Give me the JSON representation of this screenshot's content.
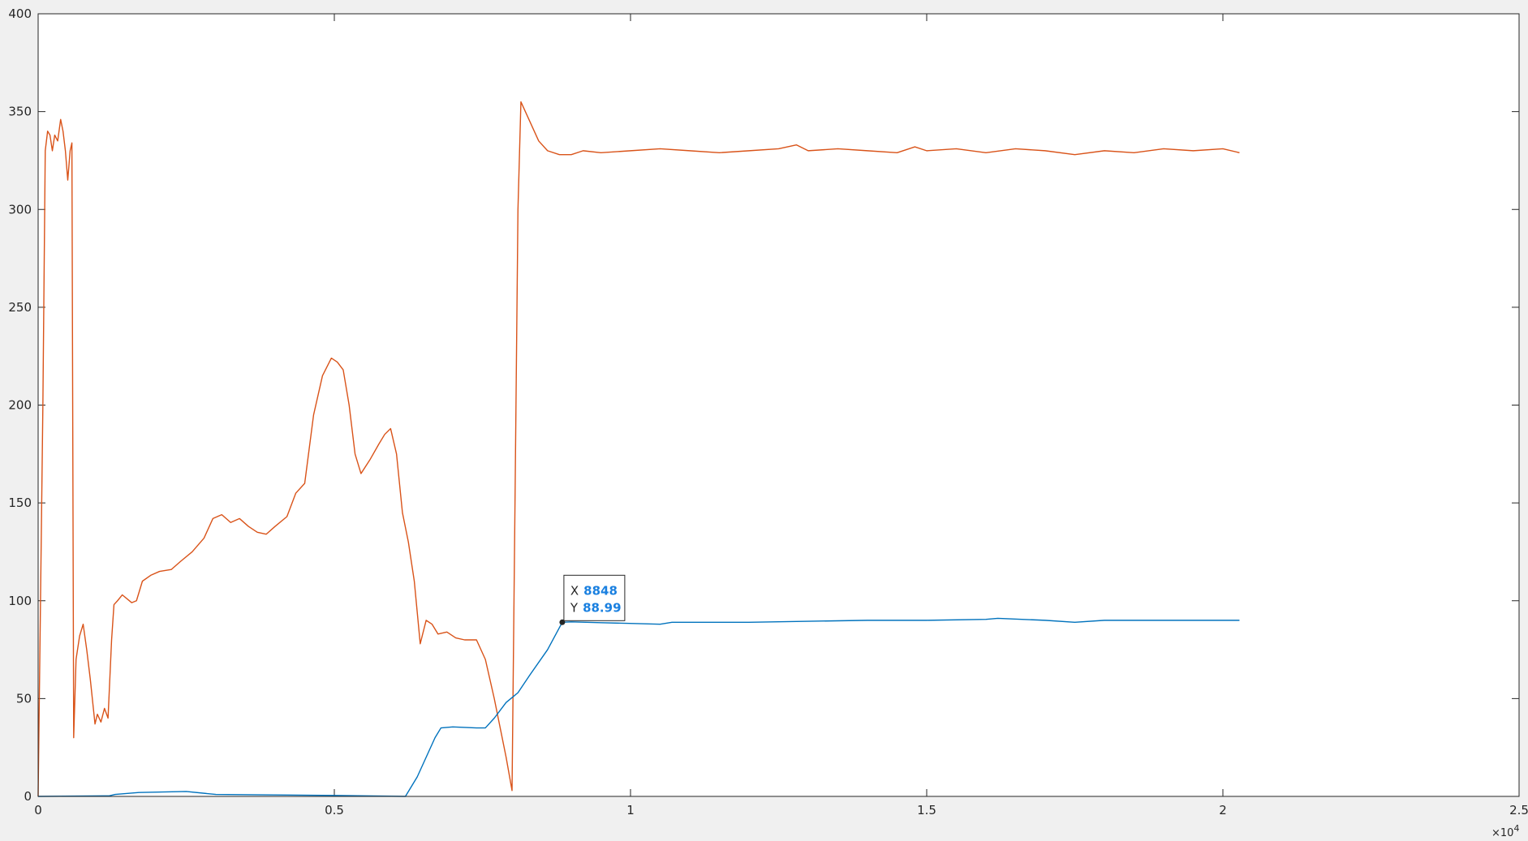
{
  "chart_data": {
    "type": "line",
    "xlim": [
      0,
      25000
    ],
    "ylim": [
      0,
      400
    ],
    "xticks": [
      0,
      {
        "value": 5000,
        "label": "0.5"
      },
      {
        "value": 10000,
        "label": "1"
      },
      {
        "value": 15000,
        "label": "1.5"
      },
      {
        "value": 20000,
        "label": "2"
      },
      {
        "value": 25000,
        "label": "2.5"
      }
    ],
    "yticks": [
      0,
      50,
      100,
      150,
      200,
      250,
      300,
      350,
      400
    ],
    "x_exponent": {
      "base": "×10",
      "power": "4"
    },
    "series": [
      {
        "color": "#D95319",
        "x": [
          0,
          80,
          120,
          160,
          200,
          240,
          280,
          330,
          380,
          420,
          460,
          500,
          540,
          570,
          600,
          640,
          700,
          760,
          820,
          880,
          960,
          1000,
          1060,
          1120,
          1180,
          1240,
          1280,
          1340,
          1420,
          1500,
          1580,
          1660,
          1760,
          1900,
          2050,
          2250,
          2400,
          2600,
          2800,
          2950,
          3100,
          3250,
          3400,
          3550,
          3700,
          3850,
          4000,
          4200,
          4350,
          4500,
          4650,
          4800,
          4950,
          5050,
          5150,
          5250,
          5350,
          5450,
          5600,
          5750,
          5850,
          5950,
          6050,
          6150,
          6250,
          6350,
          6450,
          6550,
          6650,
          6750,
          6900,
          7050,
          7200,
          7400,
          7550,
          7700,
          7900,
          8000,
          8050,
          8100,
          8150,
          8300,
          8450,
          8600,
          8800,
          9000,
          9200,
          9500,
          10000,
          10500,
          11000,
          11500,
          12000,
          12500,
          12800,
          13000,
          13500,
          14000,
          14500,
          14800,
          15000,
          15500,
          16000,
          16500,
          17000,
          17500,
          18000,
          18500,
          19000,
          19500,
          20000,
          20280
        ],
        "values": [
          0,
          200,
          330,
          340,
          338,
          330,
          338,
          335,
          346,
          340,
          330,
          315,
          330,
          334,
          30,
          70,
          82,
          88,
          75,
          60,
          37,
          42,
          38,
          45,
          40,
          80,
          98,
          100,
          103,
          101,
          99,
          100,
          110,
          113,
          115,
          116,
          120,
          125,
          132,
          142,
          144,
          140,
          142,
          138,
          135,
          134,
          138,
          143,
          155,
          160,
          195,
          215,
          224,
          222,
          218,
          200,
          175,
          165,
          172,
          180,
          185,
          188,
          175,
          145,
          130,
          110,
          78,
          90,
          88,
          83,
          84,
          81,
          80,
          80,
          70,
          50,
          20,
          3,
          150,
          300,
          355,
          345,
          335,
          330,
          328,
          328,
          330,
          329,
          330,
          331,
          330,
          329,
          330,
          331,
          333,
          330,
          331,
          330,
          329,
          332,
          330,
          331,
          329,
          331,
          330,
          328,
          330,
          329,
          331,
          330,
          331,
          329
        ]
      },
      {
        "color": "#0072BD",
        "x": [
          0,
          1200,
          1300,
          1700,
          2500,
          3000,
          5000,
          6200,
          6400,
          6700,
          6800,
          7000,
          7400,
          7550,
          7700,
          7900,
          8100,
          8300,
          8600,
          8848,
          9000,
          9500,
          10500,
          10700,
          12000,
          13000,
          14000,
          15000,
          16000,
          16200,
          17000,
          17500,
          18000,
          19000,
          20280
        ],
        "values": [
          0,
          0.3,
          1,
          2,
          2.5,
          1,
          0.5,
          0,
          10,
          30,
          35,
          35.5,
          35,
          35,
          40,
          48,
          53,
          62,
          75,
          88.99,
          89.2,
          88.8,
          88,
          89,
          89,
          89.5,
          90,
          90,
          90.5,
          91,
          90,
          89,
          90,
          90,
          90
        ]
      }
    ],
    "datatip": {
      "x_label": "X",
      "x": 8848,
      "y_label": "Y",
      "y": 88.99
    }
  }
}
